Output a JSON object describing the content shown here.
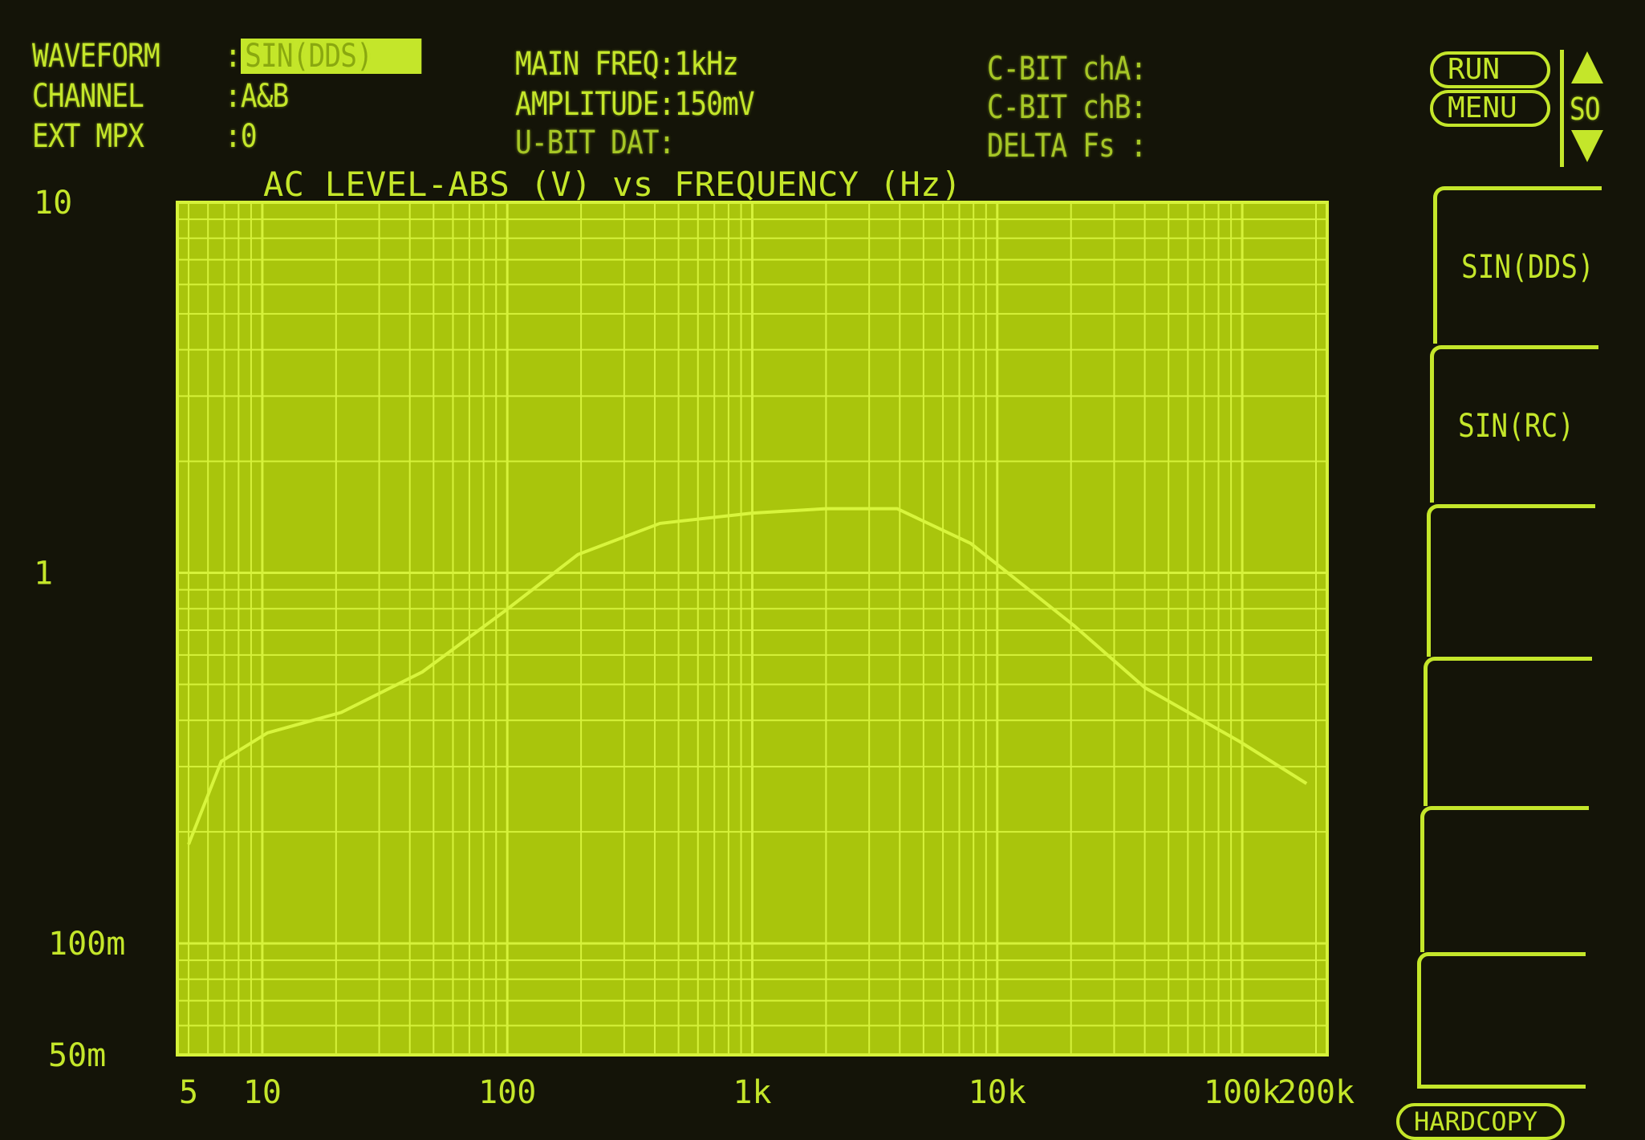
{
  "header": {
    "waveform_label": "WAVEFORM",
    "waveform_value": "SIN(DDS)",
    "channel_label": "CHANNEL",
    "channel_value": "A&B",
    "ext_mpx_label": "EXT MPX",
    "ext_mpx_value": "0",
    "main_freq": "MAIN FREQ:1kHz",
    "amplitude": "AMPLITUDE:150mV",
    "u_bit": "U-BIT DAT:",
    "cbit_a": "C-BIT chA:",
    "cbit_b": "C-BIT chB:",
    "delta_fs": "DELTA Fs :"
  },
  "controls": {
    "run": "RUN",
    "menu": "MENU",
    "so": "SO",
    "hardcopy": "HARDCOPY"
  },
  "softkeys": [
    "SIN(DDS)",
    "SIN(RC)",
    "",
    "",
    "",
    ""
  ],
  "colors": {
    "phosphor": "#c4e62a",
    "plot_bg": "#a9c50c",
    "grid": "#d6f23a",
    "screen": "#141408"
  },
  "chart_data": {
    "type": "line",
    "title": "AC LEVEL-ABS (V) vs FREQUENCY (Hz)",
    "x_scale": "log",
    "y_scale": "log",
    "xlim": [
      5,
      200000
    ],
    "ylim": [
      0.05,
      10
    ],
    "x_ticks": [
      {
        "v": 5,
        "label": "5"
      },
      {
        "v": 10,
        "label": "10"
      },
      {
        "v": 100,
        "label": "100"
      },
      {
        "v": 1000,
        "label": "1k"
      },
      {
        "v": 10000,
        "label": "10k"
      },
      {
        "v": 100000,
        "label": "100k"
      },
      {
        "v": 200000,
        "label": "200k"
      }
    ],
    "y_ticks": [
      {
        "v": 10,
        "label": "10"
      },
      {
        "v": 1,
        "label": "1"
      },
      {
        "v": 0.1,
        "label": "100m"
      },
      {
        "v": 0.05,
        "label": "50m"
      }
    ],
    "grid": true,
    "x": [
      5,
      6.8,
      10.5,
      21,
      45,
      98,
      194,
      420,
      1000,
      2000,
      3900,
      7800,
      20600,
      40000,
      98000,
      183000
    ],
    "y": [
      0.185,
      0.31,
      0.37,
      0.42,
      0.54,
      0.79,
      1.12,
      1.36,
      1.45,
      1.49,
      1.49,
      1.2,
      0.72,
      0.49,
      0.35,
      0.27
    ]
  }
}
